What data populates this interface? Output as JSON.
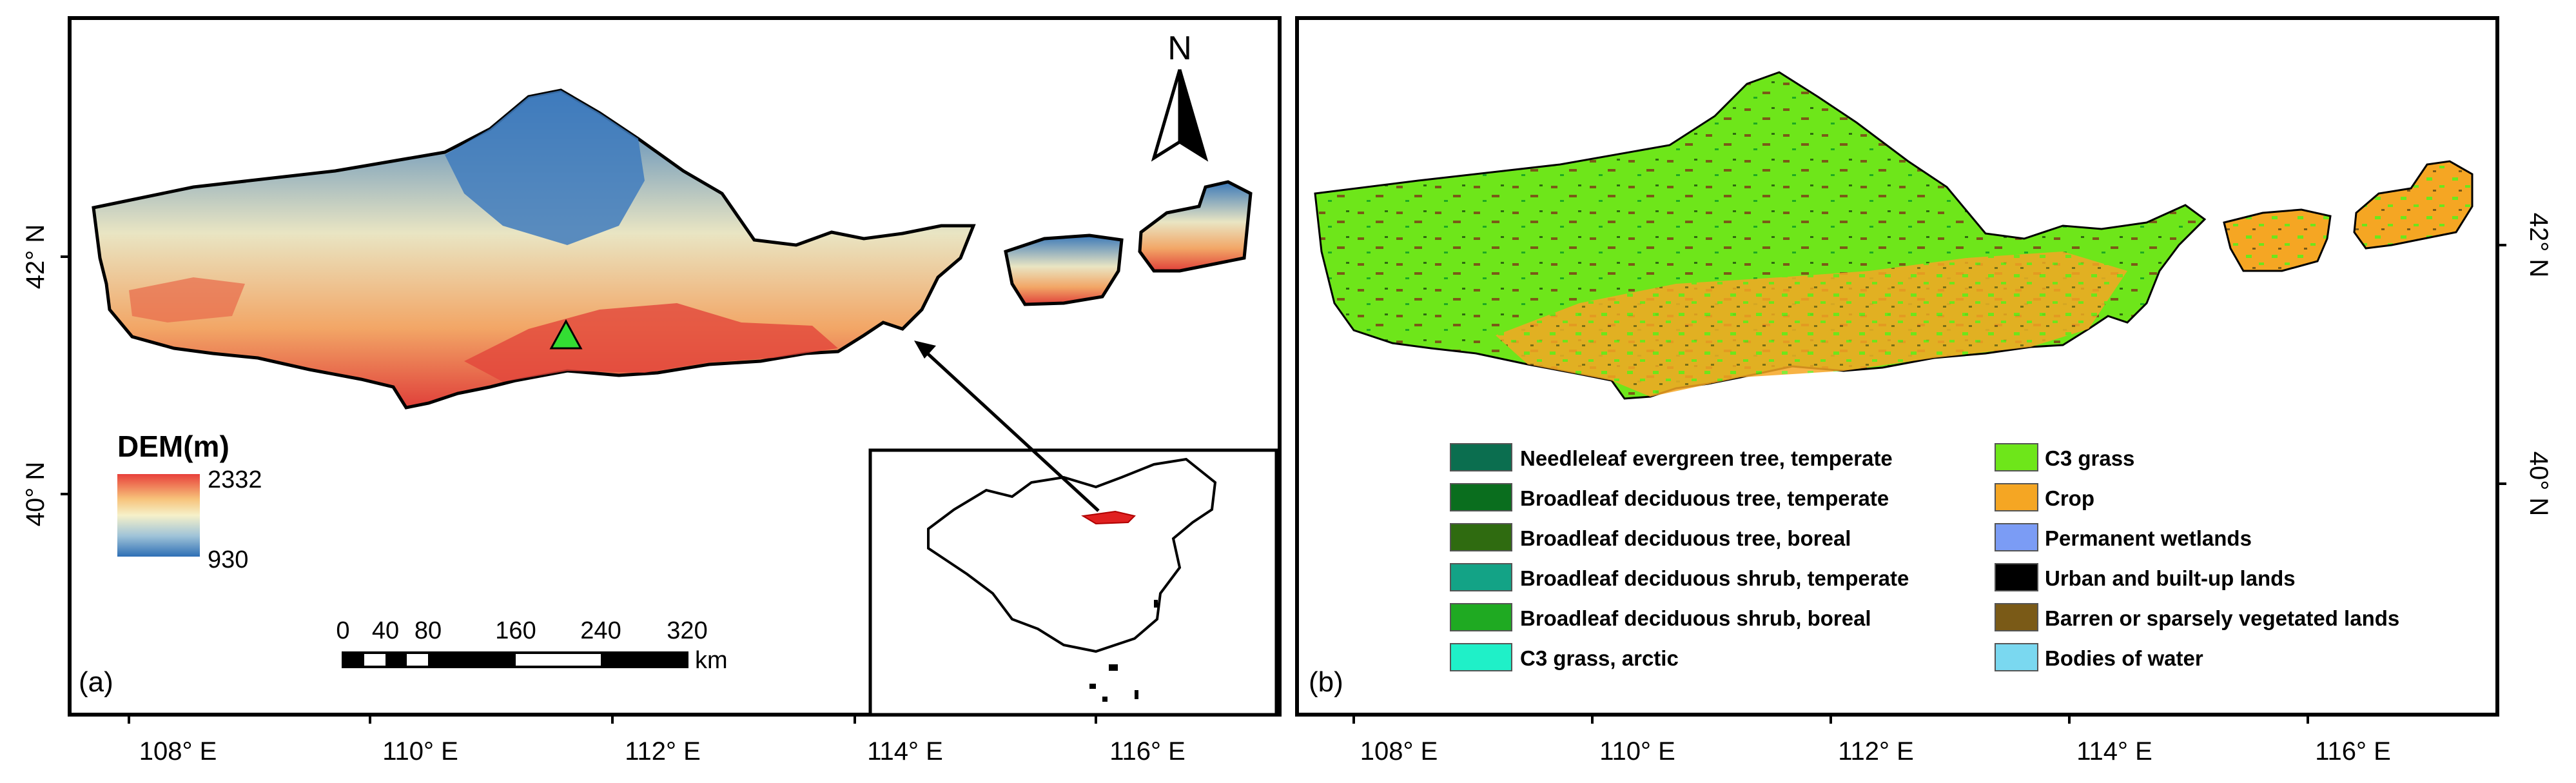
{
  "panels": [
    {
      "label": "(a)"
    },
    {
      "label": "(b)"
    }
  ],
  "north_arrow": {
    "letter": "N"
  },
  "x_ticks": [
    "108° E",
    "110° E",
    "112° E",
    "114° E",
    "116° E"
  ],
  "y_ticks": [
    "42° N",
    "40° N"
  ],
  "dem_legend": {
    "title": "DEM(m)",
    "max": "2332",
    "min": "930",
    "ramp_colors": [
      "#e8403a",
      "#f7c27a",
      "#f6f1c9",
      "#9fc3d8",
      "#2e6fb5"
    ]
  },
  "scale_bar": {
    "ticks": [
      "0",
      "40",
      "80",
      "160",
      "240",
      "320"
    ],
    "unit": "km"
  },
  "site_marker": {
    "color": "#33dd33"
  },
  "landcover_legend": {
    "left": [
      {
        "label": "Needleleaf evergreen tree, temperate",
        "color": "#0b6e4f"
      },
      {
        "label": "Broadleaf deciduous tree, temperate",
        "color": "#0a6e1e"
      },
      {
        "label": "Broadleaf deciduous tree, boreal",
        "color": "#2f6b10"
      },
      {
        "label": "Broadleaf deciduous shrub, temperate",
        "color": "#13a386"
      },
      {
        "label": "Broadleaf deciduous shrub, boreal",
        "color": "#1faa22"
      },
      {
        "label": "C3 grass, arctic",
        "color": "#1ff0c8"
      }
    ],
    "right": [
      {
        "label": "C3 grass",
        "color": "#6ee61a"
      },
      {
        "label": "Crop",
        "color": "#f5a623"
      },
      {
        "label": "Permanent wetlands",
        "color": "#7b9cf5"
      },
      {
        "label": "Urban and built-up lands",
        "color": "#000000"
      },
      {
        "label": "Barren or sparsely vegetated lands",
        "color": "#7a5a17"
      },
      {
        "label": "Bodies of water",
        "color": "#7ad8f0"
      }
    ]
  }
}
